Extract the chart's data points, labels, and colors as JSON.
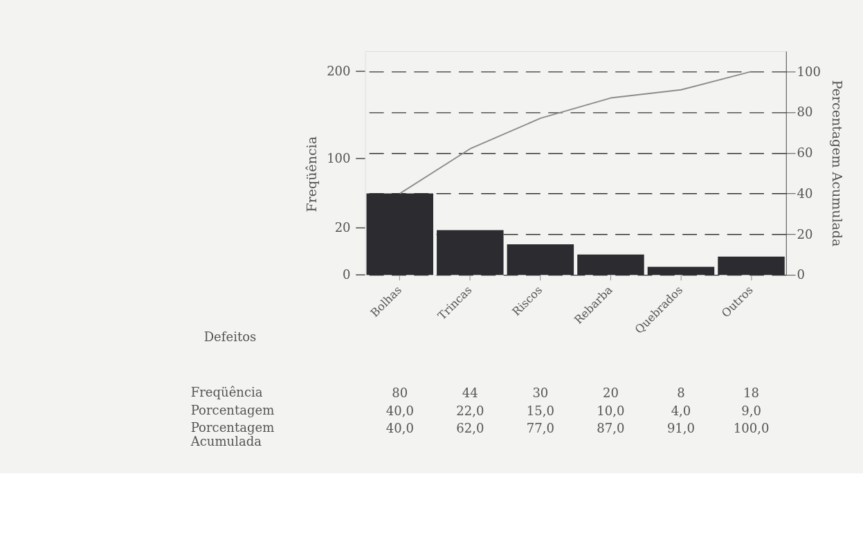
{
  "chart_data": {
    "type": "bar",
    "categories": [
      "Bolhas",
      "Trincas",
      "Riscos",
      "Rebarba",
      "Quebrados",
      "Outros"
    ],
    "ylabel": "Freqüência",
    "y2label": "Percentagem Acumulada",
    "y2lim": [
      0,
      110
    ],
    "y2ticks": [
      0,
      20,
      40,
      60,
      80,
      100
    ],
    "series": [
      {
        "axis": "y2",
        "color": "#2b2b30",
        "values": [
          40,
          22,
          15,
          10,
          4,
          9
        ],
        "value_labels": [
          "40,0",
          "22,0",
          "15,0",
          "10,0",
          "4,0",
          "9,0"
        ]
      },
      {
        "type": "line",
        "axis": "y2",
        "color": "#8c8c8c",
        "values": [
          40,
          62,
          77,
          87,
          91,
          100
        ],
        "value_labels": [
          "40,0",
          "62,0",
          "77,0",
          "87,0",
          "91,0",
          "100,0"
        ]
      }
    ],
    "annotations": [
      "Defeitos",
      "Freqüência",
      "Porcentagem",
      "Porcentagem Acumulada",
      "80",
      "44",
      "30",
      "20",
      "8",
      "18",
      "0",
      "20",
      "100",
      "200"
    ],
    "grid": "y",
    "legend": false,
    "marker": "none",
    "line_style": "solid"
  }
}
